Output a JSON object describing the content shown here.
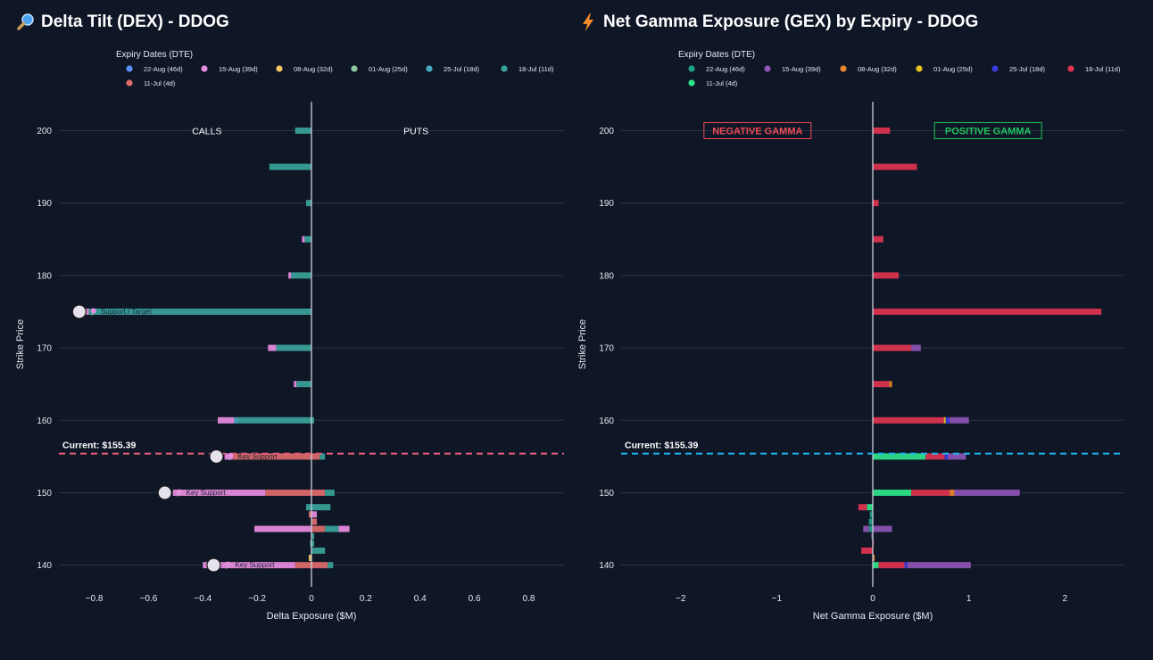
{
  "chart_data": [
    {
      "type": "bar",
      "orientation": "horizontal",
      "stacked": true,
      "title": "Delta Tilt (DEX) - DDOG",
      "title_icon": "magnifier-icon",
      "xlabel": "Delta Exposure ($M)",
      "ylabel": "Strike Price",
      "xlim": [
        -0.93,
        0.93
      ],
      "ylim": [
        137,
        204
      ],
      "x_ticks": [
        -0.8,
        -0.6,
        -0.4,
        -0.2,
        0,
        0.2,
        0.4,
        0.6,
        0.8
      ],
      "x_tick_labels": [
        "−0.8",
        "−0.6",
        "−0.4",
        "−0.2",
        "0",
        "0.2",
        "0.4",
        "0.6",
        "0.8"
      ],
      "y_ticks": [
        140,
        150,
        160,
        170,
        180,
        190,
        200
      ],
      "y_tick_labels": [
        "140",
        "150",
        "160",
        "170",
        "180",
        "190",
        "200"
      ],
      "legend_title": "Expiry Dates (DTE)",
      "legend_position": "top",
      "series": [
        {
          "name": "22-Aug (46d)",
          "color": "#5b8ff9"
        },
        {
          "name": "15-Aug (39d)",
          "color": "#e88de0"
        },
        {
          "name": "08-Aug (32d)",
          "color": "#f6c85f"
        },
        {
          "name": "01-Aug (25d)",
          "color": "#8cc7a0"
        },
        {
          "name": "25-Jul (18d)",
          "color": "#4aa9c4"
        },
        {
          "name": "18-Jul (11d)",
          "color": "#3aa39a"
        },
        {
          "name": "11-Jul (4d)",
          "color": "#e06b6b"
        }
      ],
      "bars": [
        {
          "strike": 200,
          "segments": [
            {
              "series": 5,
              "from": 0,
              "to": -0.06
            }
          ]
        },
        {
          "strike": 195,
          "segments": [
            {
              "series": 5,
              "from": 0,
              "to": -0.155
            }
          ]
        },
        {
          "strike": 190,
          "segments": [
            {
              "series": 5,
              "from": 0,
              "to": -0.02
            }
          ]
        },
        {
          "strike": 185,
          "segments": [
            {
              "series": 5,
              "from": 0,
              "to": -0.025
            },
            {
              "series": 1,
              "from": -0.025,
              "to": -0.035
            }
          ]
        },
        {
          "strike": 180,
          "segments": [
            {
              "series": 5,
              "from": 0,
              "to": -0.075
            },
            {
              "series": 1,
              "from": -0.075,
              "to": -0.085
            }
          ]
        },
        {
          "strike": 175,
          "segments": [
            {
              "series": 5,
              "from": 0,
              "to": -0.82
            },
            {
              "series": 1,
              "from": -0.82,
              "to": -0.83
            }
          ]
        },
        {
          "strike": 170,
          "segments": [
            {
              "series": 5,
              "from": 0,
              "to": -0.13
            },
            {
              "series": 1,
              "from": -0.13,
              "to": -0.16
            }
          ]
        },
        {
          "strike": 165,
          "segments": [
            {
              "series": 5,
              "from": 0,
              "to": -0.055
            },
            {
              "series": 1,
              "from": -0.055,
              "to": -0.065
            }
          ]
        },
        {
          "strike": 160,
          "segments": [
            {
              "series": 5,
              "from": 0,
              "to": -0.27
            },
            {
              "series": 4,
              "from": -0.27,
              "to": -0.285
            },
            {
              "series": 1,
              "from": -0.285,
              "to": -0.345
            },
            {
              "series": 5,
              "from": 0,
              "to": 0.01
            }
          ]
        },
        {
          "strike": 155,
          "segments": [
            {
              "series": 6,
              "from": 0,
              "to": -0.29
            },
            {
              "series": 1,
              "from": -0.29,
              "to": -0.32
            },
            {
              "series": 6,
              "from": 0,
              "to": 0.03
            },
            {
              "series": 5,
              "from": 0.03,
              "to": 0.05
            }
          ]
        },
        {
          "strike": 150,
          "segments": [
            {
              "series": 6,
              "from": 0,
              "to": -0.17
            },
            {
              "series": 1,
              "from": -0.17,
              "to": -0.51
            },
            {
              "series": 6,
              "from": 0,
              "to": 0.05
            },
            {
              "series": 5,
              "from": 0.05,
              "to": 0.085
            }
          ]
        },
        {
          "strike": 148,
          "segments": [
            {
              "series": 5,
              "from": 0,
              "to": -0.02
            },
            {
              "series": 5,
              "from": 0,
              "to": 0.07
            }
          ]
        },
        {
          "strike": 147,
          "segments": [
            {
              "series": 6,
              "from": 0,
              "to": -0.01
            },
            {
              "series": 1,
              "from": 0,
              "to": 0.02
            }
          ]
        },
        {
          "strike": 146,
          "segments": [
            {
              "series": 6,
              "from": 0,
              "to": 0.02
            }
          ]
        },
        {
          "strike": 145,
          "segments": [
            {
              "series": 1,
              "from": 0,
              "to": -0.21
            },
            {
              "series": 6,
              "from": 0,
              "to": 0.05
            },
            {
              "series": 5,
              "from": 0.05,
              "to": 0.1
            },
            {
              "series": 1,
              "from": 0.1,
              "to": 0.14
            }
          ]
        },
        {
          "strike": 144,
          "segments": [
            {
              "series": 5,
              "from": 0,
              "to": 0.01
            }
          ]
        },
        {
          "strike": 143,
          "segments": [
            {
              "series": 5,
              "from": 0,
              "to": -0.005
            },
            {
              "series": 5,
              "from": 0,
              "to": 0.01
            }
          ]
        },
        {
          "strike": 142,
          "segments": [
            {
              "series": 5,
              "from": 0,
              "to": 0.05
            }
          ]
        },
        {
          "strike": 141,
          "segments": [
            {
              "series": 2,
              "from": 0,
              "to": -0.01
            }
          ]
        },
        {
          "strike": 140,
          "segments": [
            {
              "series": 6,
              "from": 0,
              "to": -0.06
            },
            {
              "series": 1,
              "from": -0.06,
              "to": -0.4
            },
            {
              "series": 6,
              "from": 0,
              "to": 0.06
            },
            {
              "series": 5,
              "from": 0.06,
              "to": 0.08
            }
          ]
        }
      ],
      "current_price": {
        "value": 155.39,
        "label": "Current: $155.39",
        "color": "#e85d7a"
      },
      "side_labels": {
        "left": "CALLS",
        "right": "PUTS",
        "strike": 200
      },
      "annotations": [
        {
          "strike": 175,
          "x": -0.855,
          "text": "Support / Target",
          "marker": "pin-icon"
        },
        {
          "strike": 155,
          "x": -0.35,
          "text": "Key Support",
          "marker": "pin-icon"
        },
        {
          "strike": 150,
          "x": -0.54,
          "text": "Key Support",
          "marker": "pin-icon"
        },
        {
          "strike": 140,
          "x": -0.36,
          "text": "Key Support",
          "marker": "pin-icon"
        }
      ]
    },
    {
      "type": "bar",
      "orientation": "horizontal",
      "stacked": true,
      "title": "Net Gamma Exposure (GEX) by Expiry - DDOG",
      "title_icon": "lightning-icon",
      "xlabel": "Net Gamma Exposure ($M)",
      "ylabel": "Strike Price",
      "xlim": [
        -2.62,
        2.62
      ],
      "ylim": [
        137,
        204
      ],
      "x_ticks": [
        -2,
        -1,
        0,
        1,
        2
      ],
      "x_tick_labels": [
        "−2",
        "−1",
        "0",
        "1",
        "2"
      ],
      "y_ticks": [
        140,
        150,
        160,
        170,
        180,
        190,
        200
      ],
      "y_tick_labels": [
        "140",
        "150",
        "160",
        "170",
        "180",
        "190",
        "200"
      ],
      "legend_title": "Expiry Dates (DTE)",
      "legend_position": "top",
      "series": [
        {
          "name": "22-Aug (46d)",
          "color": "#1fa38a"
        },
        {
          "name": "15-Aug (39d)",
          "color": "#8e55b5"
        },
        {
          "name": "08-Aug (32d)",
          "color": "#e8862a"
        },
        {
          "name": "01-Aug (25d)",
          "color": "#e8c21f"
        },
        {
          "name": "25-Jul (18d)",
          "color": "#3b3bdc"
        },
        {
          "name": "18-Jul (11d)",
          "color": "#e0334f"
        },
        {
          "name": "11-Jul (4d)",
          "color": "#2ee68a"
        }
      ],
      "bars": [
        {
          "strike": 200,
          "segments": [
            {
              "series": 5,
              "from": 0,
              "to": 0.18
            }
          ]
        },
        {
          "strike": 195,
          "segments": [
            {
              "series": 5,
              "from": 0,
              "to": 0.46
            }
          ]
        },
        {
          "strike": 190,
          "segments": [
            {
              "series": 5,
              "from": 0,
              "to": 0.06
            }
          ]
        },
        {
          "strike": 185,
          "segments": [
            {
              "series": 5,
              "from": 0,
              "to": 0.11
            }
          ]
        },
        {
          "strike": 180,
          "segments": [
            {
              "series": 5,
              "from": 0,
              "to": 0.27
            }
          ]
        },
        {
          "strike": 175,
          "segments": [
            {
              "series": 5,
              "from": 0,
              "to": 2.38
            }
          ]
        },
        {
          "strike": 170,
          "segments": [
            {
              "series": 5,
              "from": 0,
              "to": 0.4
            },
            {
              "series": 1,
              "from": 0.4,
              "to": 0.5
            }
          ]
        },
        {
          "strike": 165,
          "segments": [
            {
              "series": 5,
              "from": 0,
              "to": 0.17
            },
            {
              "series": 2,
              "from": 0.17,
              "to": 0.2
            }
          ]
        },
        {
          "strike": 160,
          "segments": [
            {
              "series": 5,
              "from": 0,
              "to": 0.74
            },
            {
              "series": 3,
              "from": 0.74,
              "to": 0.76
            },
            {
              "series": 4,
              "from": 0.76,
              "to": 0.8
            },
            {
              "series": 1,
              "from": 0.8,
              "to": 1.0
            }
          ]
        },
        {
          "strike": 155,
          "segments": [
            {
              "series": 6,
              "from": 0,
              "to": 0.55
            },
            {
              "series": 5,
              "from": 0.55,
              "to": 0.75
            },
            {
              "series": 4,
              "from": 0.75,
              "to": 0.78
            },
            {
              "series": 1,
              "from": 0.78,
              "to": 0.97
            }
          ]
        },
        {
          "strike": 150,
          "segments": [
            {
              "series": 6,
              "from": 0,
              "to": 0.4
            },
            {
              "series": 5,
              "from": 0.4,
              "to": 0.8
            },
            {
              "series": 2,
              "from": 0.8,
              "to": 0.85
            },
            {
              "series": 1,
              "from": 0.85,
              "to": 1.53
            }
          ]
        },
        {
          "strike": 148,
          "segments": [
            {
              "series": 6,
              "from": 0,
              "to": -0.06
            },
            {
              "series": 5,
              "from": -0.06,
              "to": -0.15
            }
          ]
        },
        {
          "strike": 147,
          "segments": [
            {
              "series": 0,
              "from": 0,
              "to": -0.03
            }
          ]
        },
        {
          "strike": 146,
          "segments": [
            {
              "series": 0,
              "from": 0,
              "to": -0.04
            }
          ]
        },
        {
          "strike": 145,
          "segments": [
            {
              "series": 0,
              "from": 0,
              "to": -0.04
            },
            {
              "series": 1,
              "from": -0.04,
              "to": -0.1
            },
            {
              "series": 1,
              "from": 0,
              "to": 0.2
            }
          ]
        },
        {
          "strike": 144,
          "segments": [
            {
              "series": 1,
              "from": 0,
              "to": -0.015
            }
          ]
        },
        {
          "strike": 143,
          "segments": [
            {
              "series": 5,
              "from": 0,
              "to": 0.01
            }
          ]
        },
        {
          "strike": 142,
          "segments": [
            {
              "series": 5,
              "from": 0,
              "to": -0.12
            }
          ]
        },
        {
          "strike": 141,
          "segments": [
            {
              "series": 2,
              "from": 0,
              "to": 0.02
            }
          ]
        },
        {
          "strike": 140,
          "segments": [
            {
              "series": 6,
              "from": 0,
              "to": 0.06
            },
            {
              "series": 5,
              "from": 0.06,
              "to": 0.33
            },
            {
              "series": 4,
              "from": 0.33,
              "to": 0.36
            },
            {
              "series": 1,
              "from": 0.36,
              "to": 1.02
            }
          ]
        }
      ],
      "current_price": {
        "value": 155.39,
        "label": "Current: $155.39",
        "color": "#1eb4f0"
      },
      "zone_labels": [
        {
          "text": "NEGATIVE GAMMA",
          "x": -1.2,
          "strike": 200,
          "color": "#ef4b57"
        },
        {
          "text": "POSITIVE GAMMA",
          "x": 1.2,
          "strike": 200,
          "color": "#22c55e"
        }
      ]
    }
  ]
}
